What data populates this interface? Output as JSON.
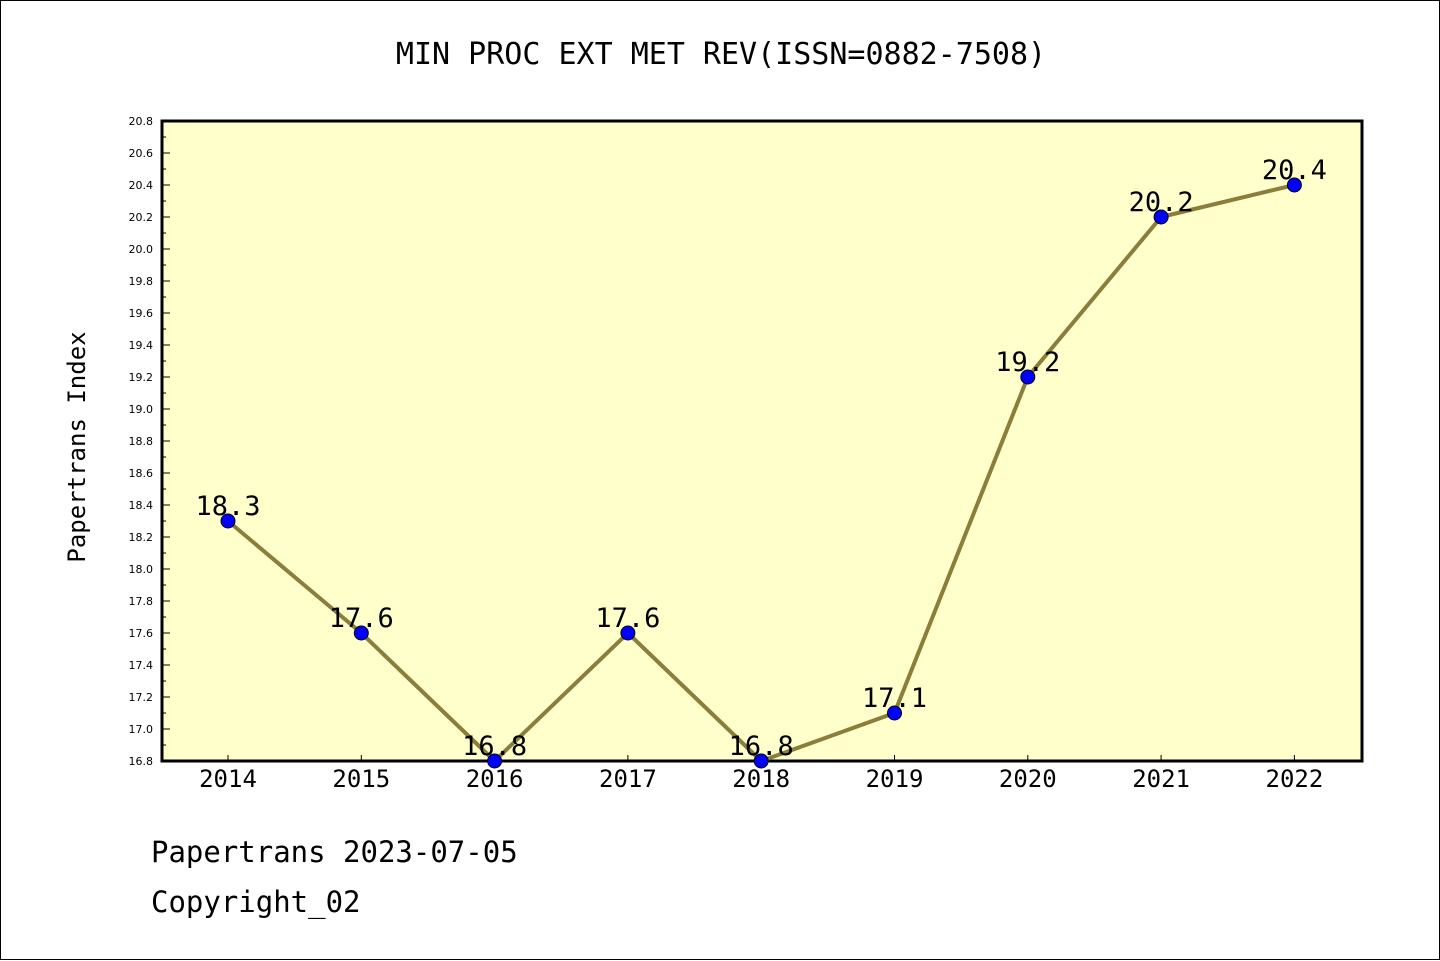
{
  "chart_data": {
    "type": "line",
    "title": "MIN PROC EXT MET REV(ISSN=0882-7508)",
    "ylabel": "Papertrans Index",
    "xlabel": "",
    "categories": [
      "2014",
      "2015",
      "2016",
      "2017",
      "2018",
      "2019",
      "2020",
      "2021",
      "2022"
    ],
    "series": [
      {
        "values": [
          18.3,
          17.6,
          16.8,
          17.6,
          16.8,
          17.1,
          19.2,
          20.2,
          20.4
        ]
      }
    ],
    "data_labels": [
      "18.3",
      "17.6",
      "16.8",
      "17.6",
      "16.8",
      "17.1",
      "19.2",
      "20.2",
      "20.4"
    ],
    "ylim": [
      16.8,
      20.8
    ],
    "yticks": [
      "16.8",
      "17.0",
      "17.2",
      "17.4",
      "17.6",
      "17.8",
      "18.0",
      "18.2",
      "18.4",
      "18.6",
      "18.8",
      "19.0",
      "19.2",
      "19.4",
      "19.6",
      "19.8",
      "20.0",
      "20.2",
      "20.4",
      "20.6",
      "20.8"
    ],
    "grid": false,
    "colors": {
      "plot_background": "#ffffcc",
      "line": "#8b7d3a",
      "marker": "#0000ff"
    }
  },
  "footer": {
    "date_line": "Papertrans 2023-07-05",
    "copyright": "Copyright_02"
  }
}
